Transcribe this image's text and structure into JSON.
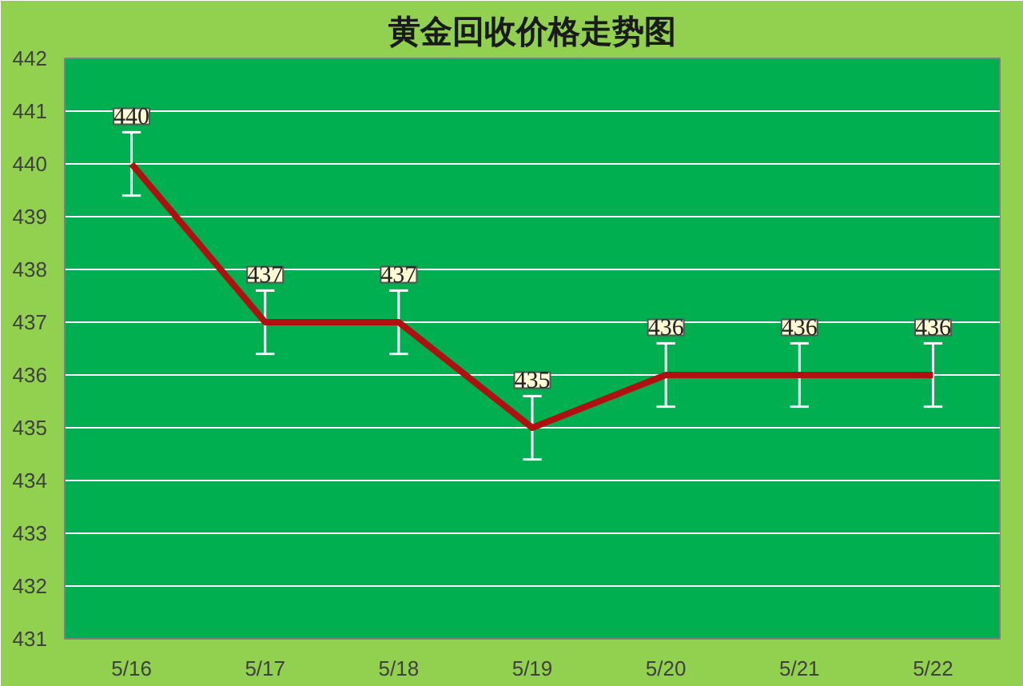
{
  "chart_data": {
    "type": "line",
    "title": "黄金回收价格走势图",
    "categories": [
      "5/16",
      "5/17",
      "5/18",
      "5/19",
      "5/20",
      "5/21",
      "5/22"
    ],
    "series": [
      {
        "color": "#b01010",
        "values": [
          440,
          437,
          437,
          435,
          436,
          436,
          436
        ],
        "errors": [
          0.6,
          0.6,
          0.6,
          0.6,
          0.6,
          0.6,
          0.6
        ]
      }
    ],
    "ylim": [
      431,
      442
    ],
    "yticks": [
      431,
      432,
      433,
      434,
      435,
      436,
      437,
      438,
      439,
      440,
      441,
      442
    ],
    "grid": "y",
    "data_labels": true,
    "marker": "none",
    "line_style": "solid"
  }
}
